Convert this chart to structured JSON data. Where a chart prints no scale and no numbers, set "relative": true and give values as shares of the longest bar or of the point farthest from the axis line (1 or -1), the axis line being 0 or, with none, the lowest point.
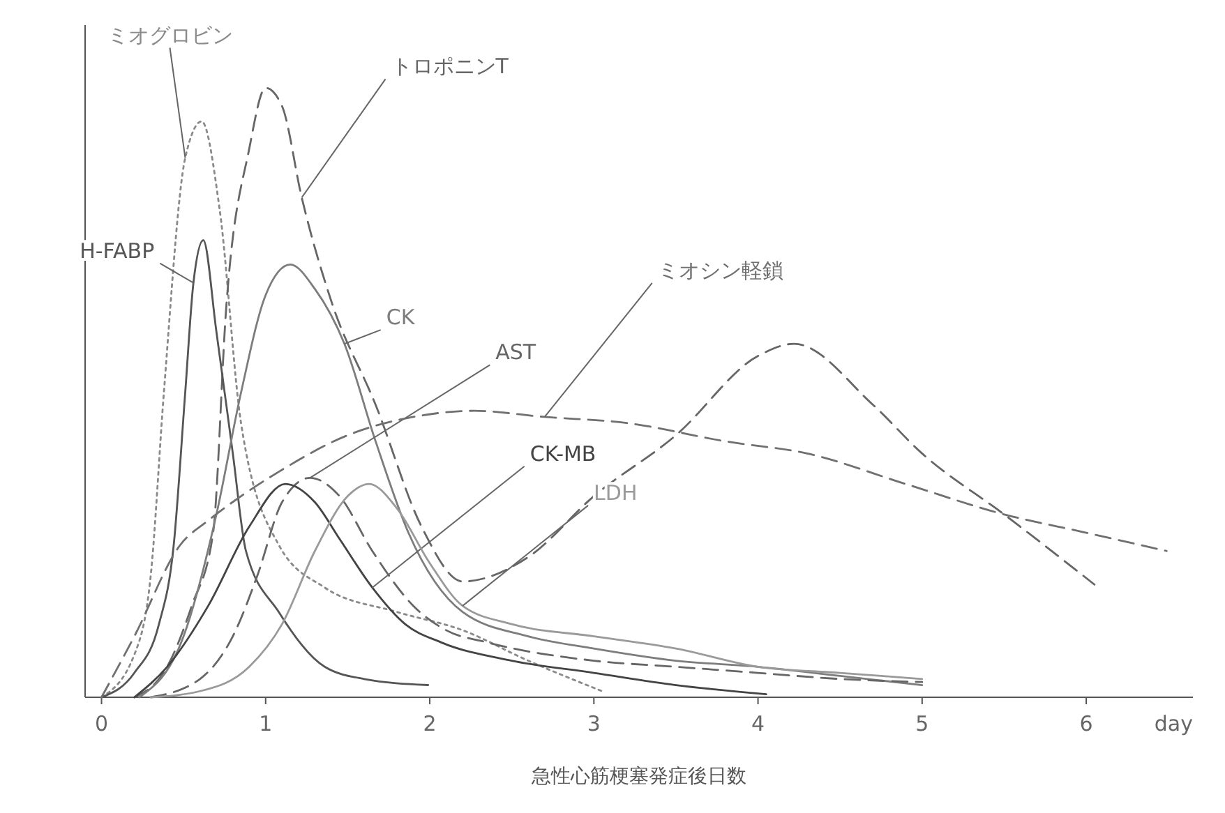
{
  "chart_data": {
    "type": "line",
    "relative": true,
    "xlabel": "急性心筋梗塞発症後日数",
    "annotations": [
      "day"
    ],
    "xlim": [
      -0.1,
      6.65
    ],
    "xticks": [
      0,
      1,
      2,
      3,
      4,
      5,
      6
    ],
    "tick_labels": "x",
    "grid": false,
    "legend": false,
    "marker": "none",
    "series": [
      {
        "name": "ミオグロビン",
        "color": "#8a8a8a",
        "line_style": "dotted",
        "x": [
          0,
          0.2,
          0.3,
          0.38,
          0.51,
          0.61,
          0.72,
          0.85,
          1.08,
          1.36,
          1.8,
          2.2,
          2.6,
          3.05
        ],
        "values": [
          0,
          0.07,
          0.2,
          0.5,
          0.885,
          0.945,
          0.8,
          0.45,
          0.25,
          0.18,
          0.14,
          0.11,
          0.06,
          0.01
        ]
      },
      {
        "name": "トロポニンT",
        "color": "#666666",
        "line_style": "dashed",
        "x": [
          0.2,
          0.4,
          0.55,
          0.68,
          0.76,
          0.9,
          1.0,
          1.1,
          1.22,
          1.4,
          1.67,
          1.95,
          2.2,
          2.6,
          3.0,
          3.5,
          4.0,
          4.22,
          4.7,
          5.0,
          5.5,
          6.05
        ],
        "values": [
          0,
          0.05,
          0.15,
          0.27,
          0.64,
          0.9,
          1,
          0.97,
          0.82,
          0.65,
          0.48,
          0.28,
          0.19,
          0.23,
          0.33,
          0.43,
          0.56,
          0.58,
          0.48,
          0.4,
          0.3,
          0.185
        ]
      },
      {
        "name": "H-FABP",
        "color": "#555555",
        "line_style": "solid",
        "x": [
          0,
          0.2,
          0.35,
          0.44,
          0.51,
          0.56,
          0.62,
          0.7,
          0.8,
          0.88,
          1.08,
          1.36,
          1.6,
          1.99
        ],
        "values": [
          0,
          0.04,
          0.12,
          0.25,
          0.5,
          0.68,
          0.75,
          0.6,
          0.4,
          0.24,
          0.14,
          0.05,
          0.03,
          0.02
        ]
      },
      {
        "name": "CK",
        "color": "#7d7d7d",
        "line_style": "solid",
        "x": [
          0.23,
          0.5,
          0.7,
          0.85,
          1.0,
          1.15,
          1.3,
          1.48,
          1.67,
          1.87,
          2.2,
          2.6,
          3,
          3.5,
          4,
          4.5,
          5
        ],
        "values": [
          0,
          0.1,
          0.3,
          0.5,
          0.66,
          0.71,
          0.67,
          0.58,
          0.42,
          0.27,
          0.14,
          0.1,
          0.08,
          0.06,
          0.05,
          0.035,
          0.02
        ]
      },
      {
        "name": "AST",
        "color": "#666666",
        "line_style": "dashed",
        "x": [
          0.3,
          0.6,
          0.8,
          0.95,
          1.1,
          1.27,
          1.45,
          1.65,
          1.9,
          2.1,
          2.35,
          3,
          3.5,
          4,
          4.5,
          5
        ],
        "values": [
          0,
          0.03,
          0.1,
          0.2,
          0.32,
          0.36,
          0.33,
          0.24,
          0.15,
          0.11,
          0.09,
          0.06,
          0.05,
          0.04,
          0.03,
          0.025
        ]
      },
      {
        "name": "ミオシン軽鎖",
        "color": "#707070",
        "line_style": "dashed",
        "x": [
          0,
          0.2,
          0.48,
          0.65,
          0.85,
          1.08,
          1.5,
          1.9,
          2.27,
          2.7,
          3.2,
          3.8,
          4.3,
          4.9,
          5.5,
          6.0,
          6.49
        ],
        "values": [
          0,
          0.1,
          0.25,
          0.29,
          0.33,
          0.37,
          0.43,
          0.46,
          0.47,
          0.46,
          0.45,
          0.42,
          0.4,
          0.35,
          0.3,
          0.27,
          0.24
        ]
      },
      {
        "name": "CK-MB",
        "color": "#444444",
        "line_style": "solid",
        "x": [
          0.2,
          0.4,
          0.65,
          0.9,
          1.12,
          1.3,
          1.45,
          1.65,
          1.85,
          2.07,
          2.5,
          3,
          3.5,
          4.05
        ],
        "values": [
          0,
          0.05,
          0.15,
          0.28,
          0.35,
          0.32,
          0.26,
          0.18,
          0.12,
          0.09,
          0.06,
          0.04,
          0.02,
          0.005
        ]
      },
      {
        "name": "LDH",
        "color": "#9a9a9a",
        "line_style": "solid",
        "x": [
          0.3,
          0.6,
          0.9,
          1.1,
          1.3,
          1.5,
          1.63,
          1.8,
          2.0,
          2.2,
          2.5,
          3,
          3.5,
          4,
          4.5,
          5
        ],
        "values": [
          0,
          0.01,
          0.05,
          0.12,
          0.24,
          0.33,
          0.35,
          0.31,
          0.22,
          0.15,
          0.12,
          0.1,
          0.08,
          0.05,
          0.04,
          0.03
        ]
      }
    ]
  }
}
